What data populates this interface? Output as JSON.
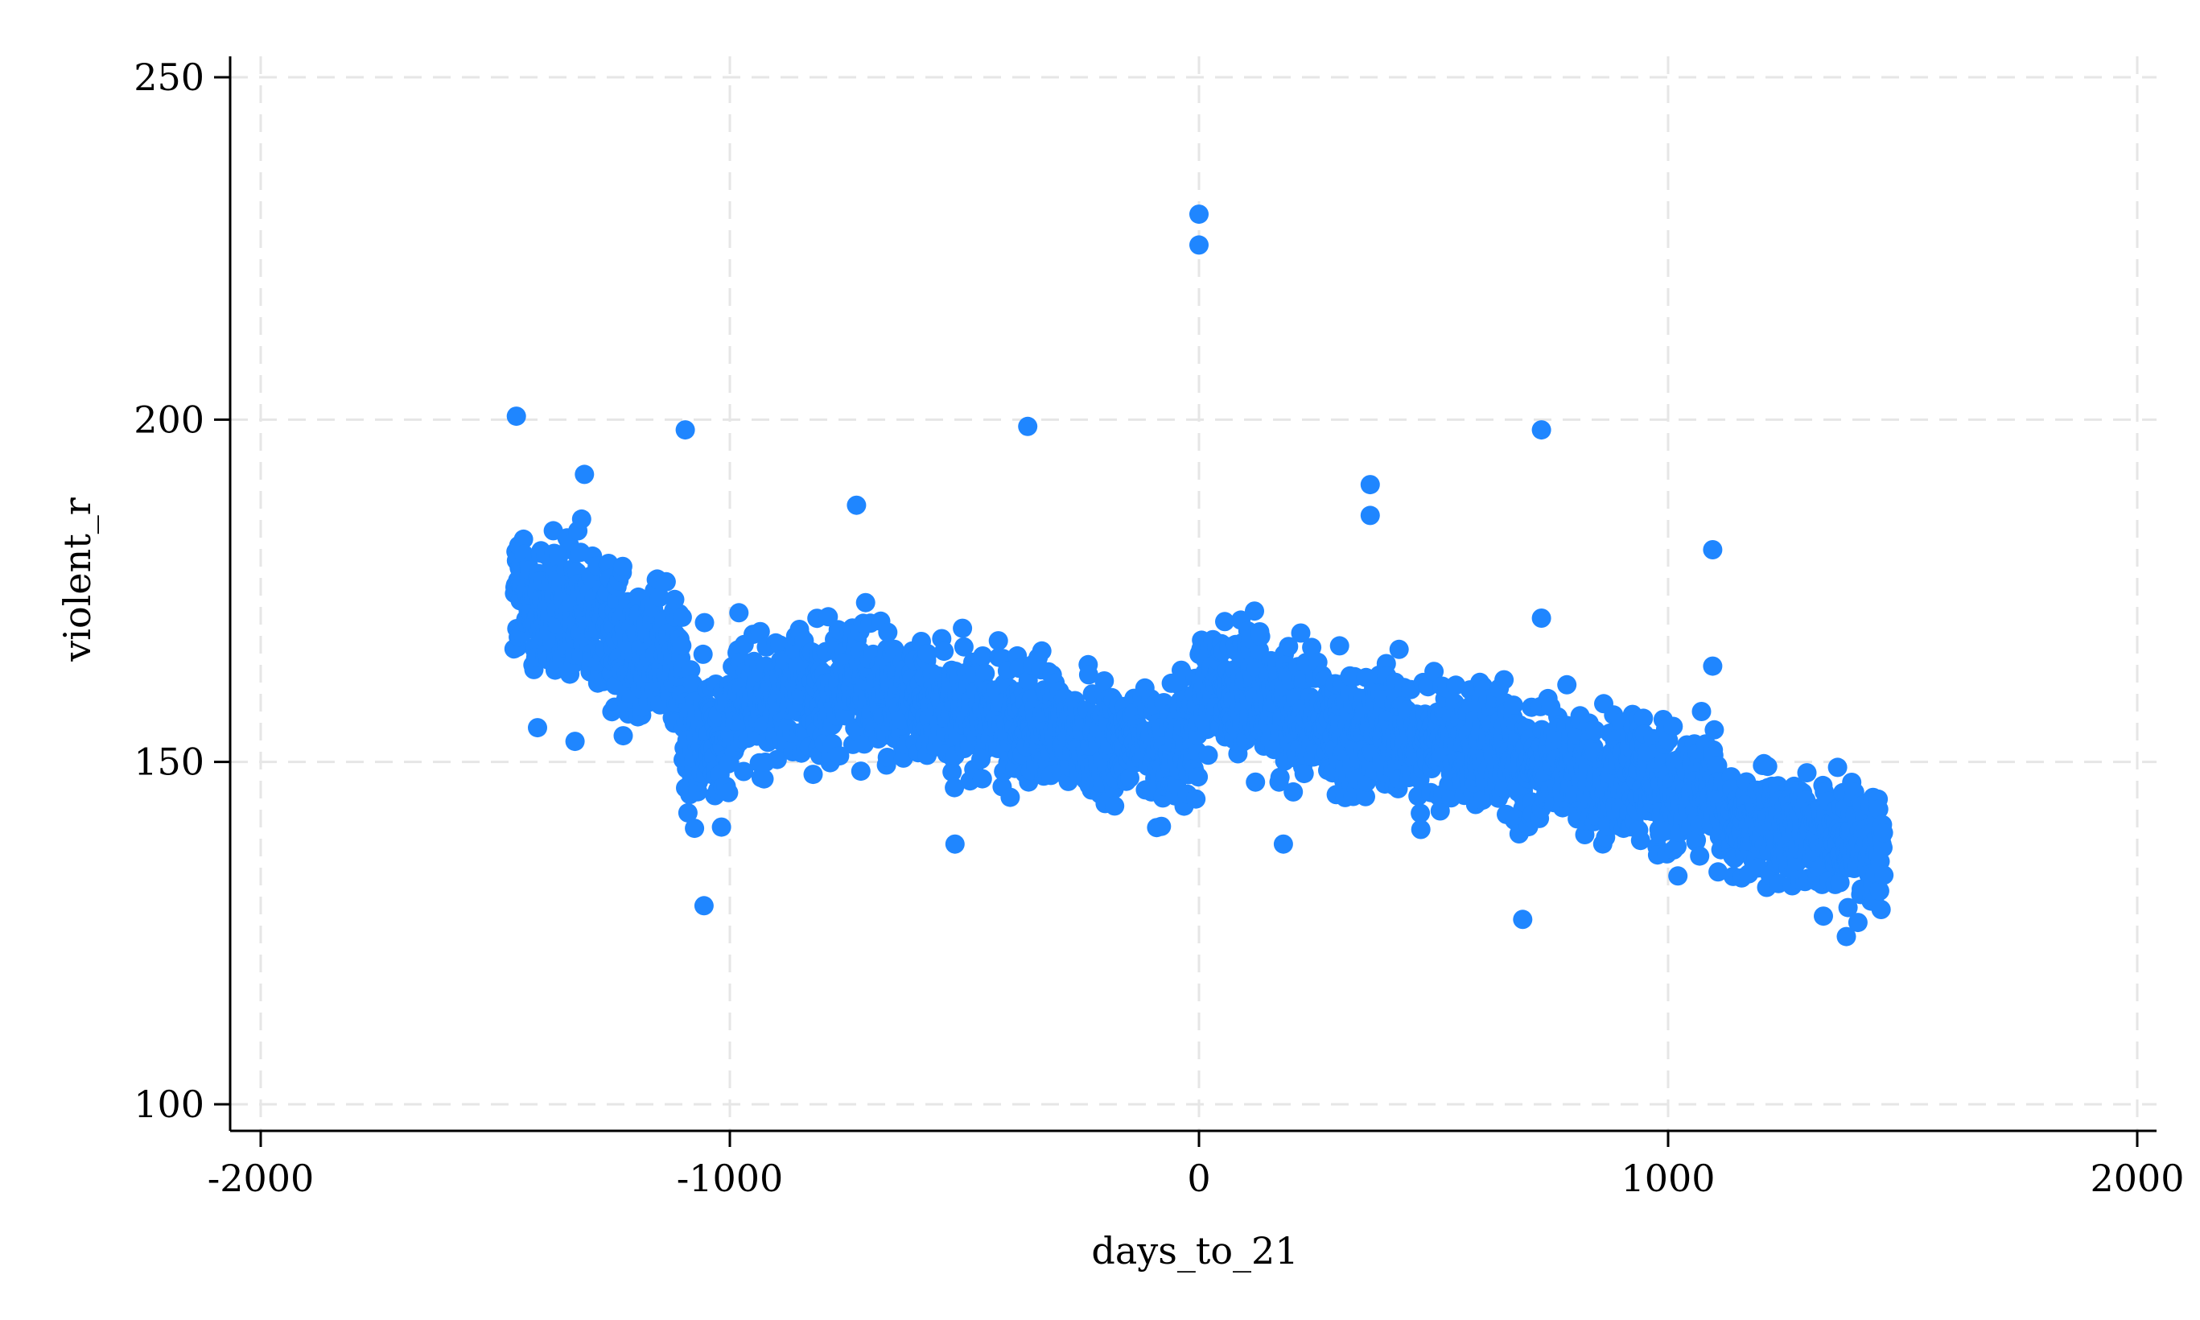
{
  "chart_data": {
    "type": "scatter",
    "title": "",
    "xlabel": "days_to_21",
    "ylabel": "violent_r",
    "xlim": [
      -2000,
      2000
    ],
    "ylim": [
      100,
      250
    ],
    "x_ticks": [
      "-2000",
      "-1000",
      "0",
      "1000",
      "2000"
    ],
    "y_ticks": [
      "100",
      "150",
      "200",
      "250"
    ],
    "grid": true,
    "legend": "none",
    "marker_color": "#1f86ff",
    "outliers": [
      {
        "x": -1455,
        "y": 200.5
      },
      {
        "x": -1095,
        "y": 198.5
      },
      {
        "x": -365,
        "y": 199
      },
      {
        "x": 0,
        "y": 230
      },
      {
        "x": 0,
        "y": 225.5
      },
      {
        "x": 365,
        "y": 190.5
      },
      {
        "x": 365,
        "y": 186
      },
      {
        "x": 730,
        "y": 198.5
      },
      {
        "x": 730,
        "y": 171
      },
      {
        "x": 1095,
        "y": 181
      },
      {
        "x": 1095,
        "y": 164
      },
      {
        "x": -1055,
        "y": 129
      },
      {
        "x": -730,
        "y": 187.5
      },
      {
        "x": -1310,
        "y": 192
      },
      {
        "x": 690,
        "y": 127
      },
      {
        "x": 1380,
        "y": 124.5
      },
      {
        "x": -1330,
        "y": 153
      },
      {
        "x": -1410,
        "y": 155
      },
      {
        "x": -520,
        "y": 138
      },
      {
        "x": 180,
        "y": 138
      }
    ],
    "trend": {
      "x_range": [
        -1460,
        1460
      ],
      "segments": [
        {
          "x0": -1460,
          "x1": -1100,
          "center_start": 174,
          "center_end": 165,
          "spread": 10
        },
        {
          "x0": -1100,
          "x1": -1000,
          "center_start": 151,
          "center_end": 156,
          "spread": 10
        },
        {
          "x0": -1000,
          "x1": -700,
          "center_start": 158,
          "center_end": 162,
          "spread": 9
        },
        {
          "x0": -700,
          "x1": -80,
          "center_start": 160,
          "center_end": 152,
          "spread": 8
        },
        {
          "x0": -80,
          "x1": 0,
          "center_start": 151,
          "center_end": 154,
          "spread": 8
        },
        {
          "x0": 0,
          "x1": 250,
          "center_start": 162,
          "center_end": 157,
          "spread": 8
        },
        {
          "x0": 250,
          "x1": 1100,
          "center_start": 156,
          "center_end": 145,
          "spread": 8
        },
        {
          "x0": 1100,
          "x1": 1460,
          "center_start": 142,
          "center_end": 137,
          "spread": 7
        }
      ],
      "point_count": 2900
    }
  }
}
